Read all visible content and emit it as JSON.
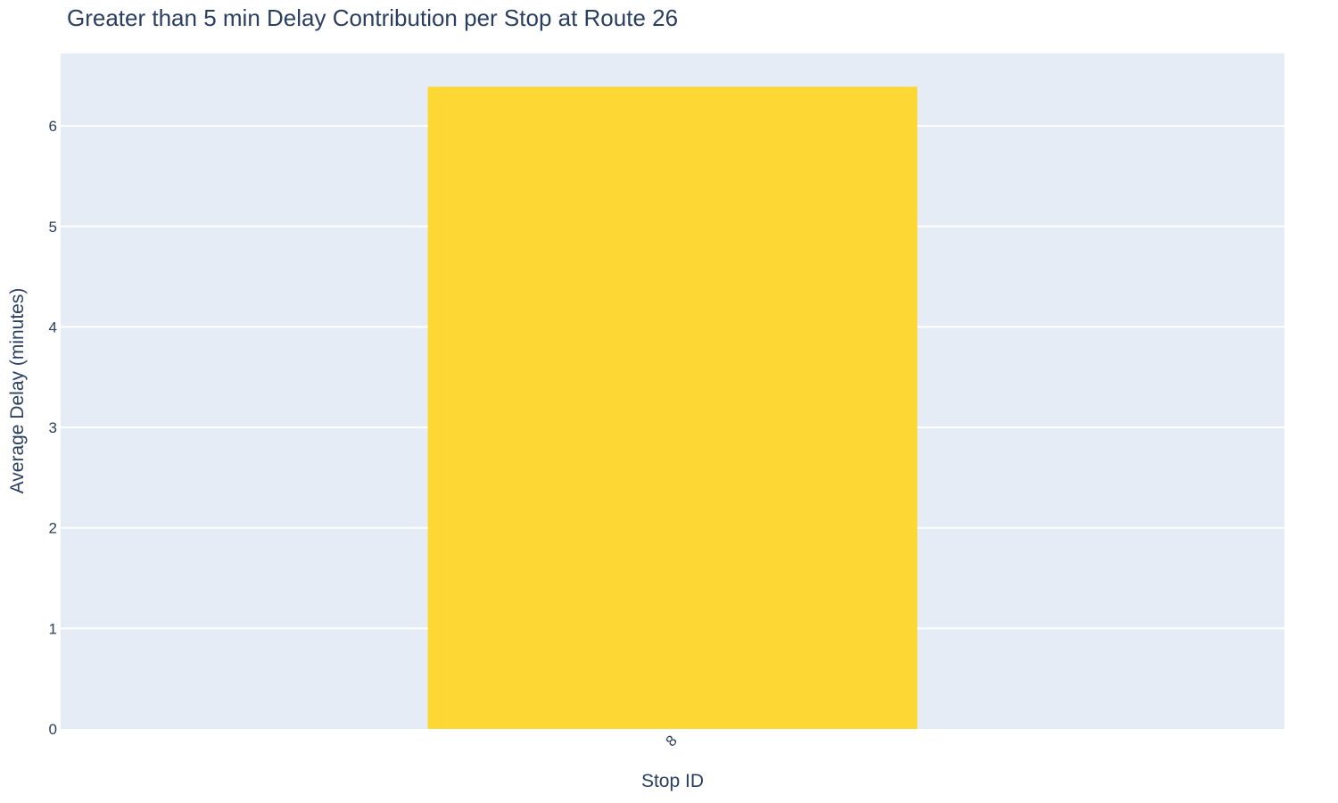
{
  "chart_data": {
    "type": "bar",
    "title": "Greater than 5 min Delay Contribution per Stop at Route 26",
    "xlabel": "Stop ID",
    "ylabel": "Average Delay (minutes)",
    "categories": [
      "8"
    ],
    "values": [
      6.39
    ],
    "ylim": [
      0,
      6.72
    ],
    "yticks": [
      0,
      1,
      2,
      3,
      4,
      5,
      6
    ],
    "grid": true,
    "legend": "none",
    "colors": {
      "bar": "#fdd835",
      "plot_background": "#e5ecf6",
      "gridline": "#ffffff",
      "text": "#2a3f5f"
    }
  }
}
